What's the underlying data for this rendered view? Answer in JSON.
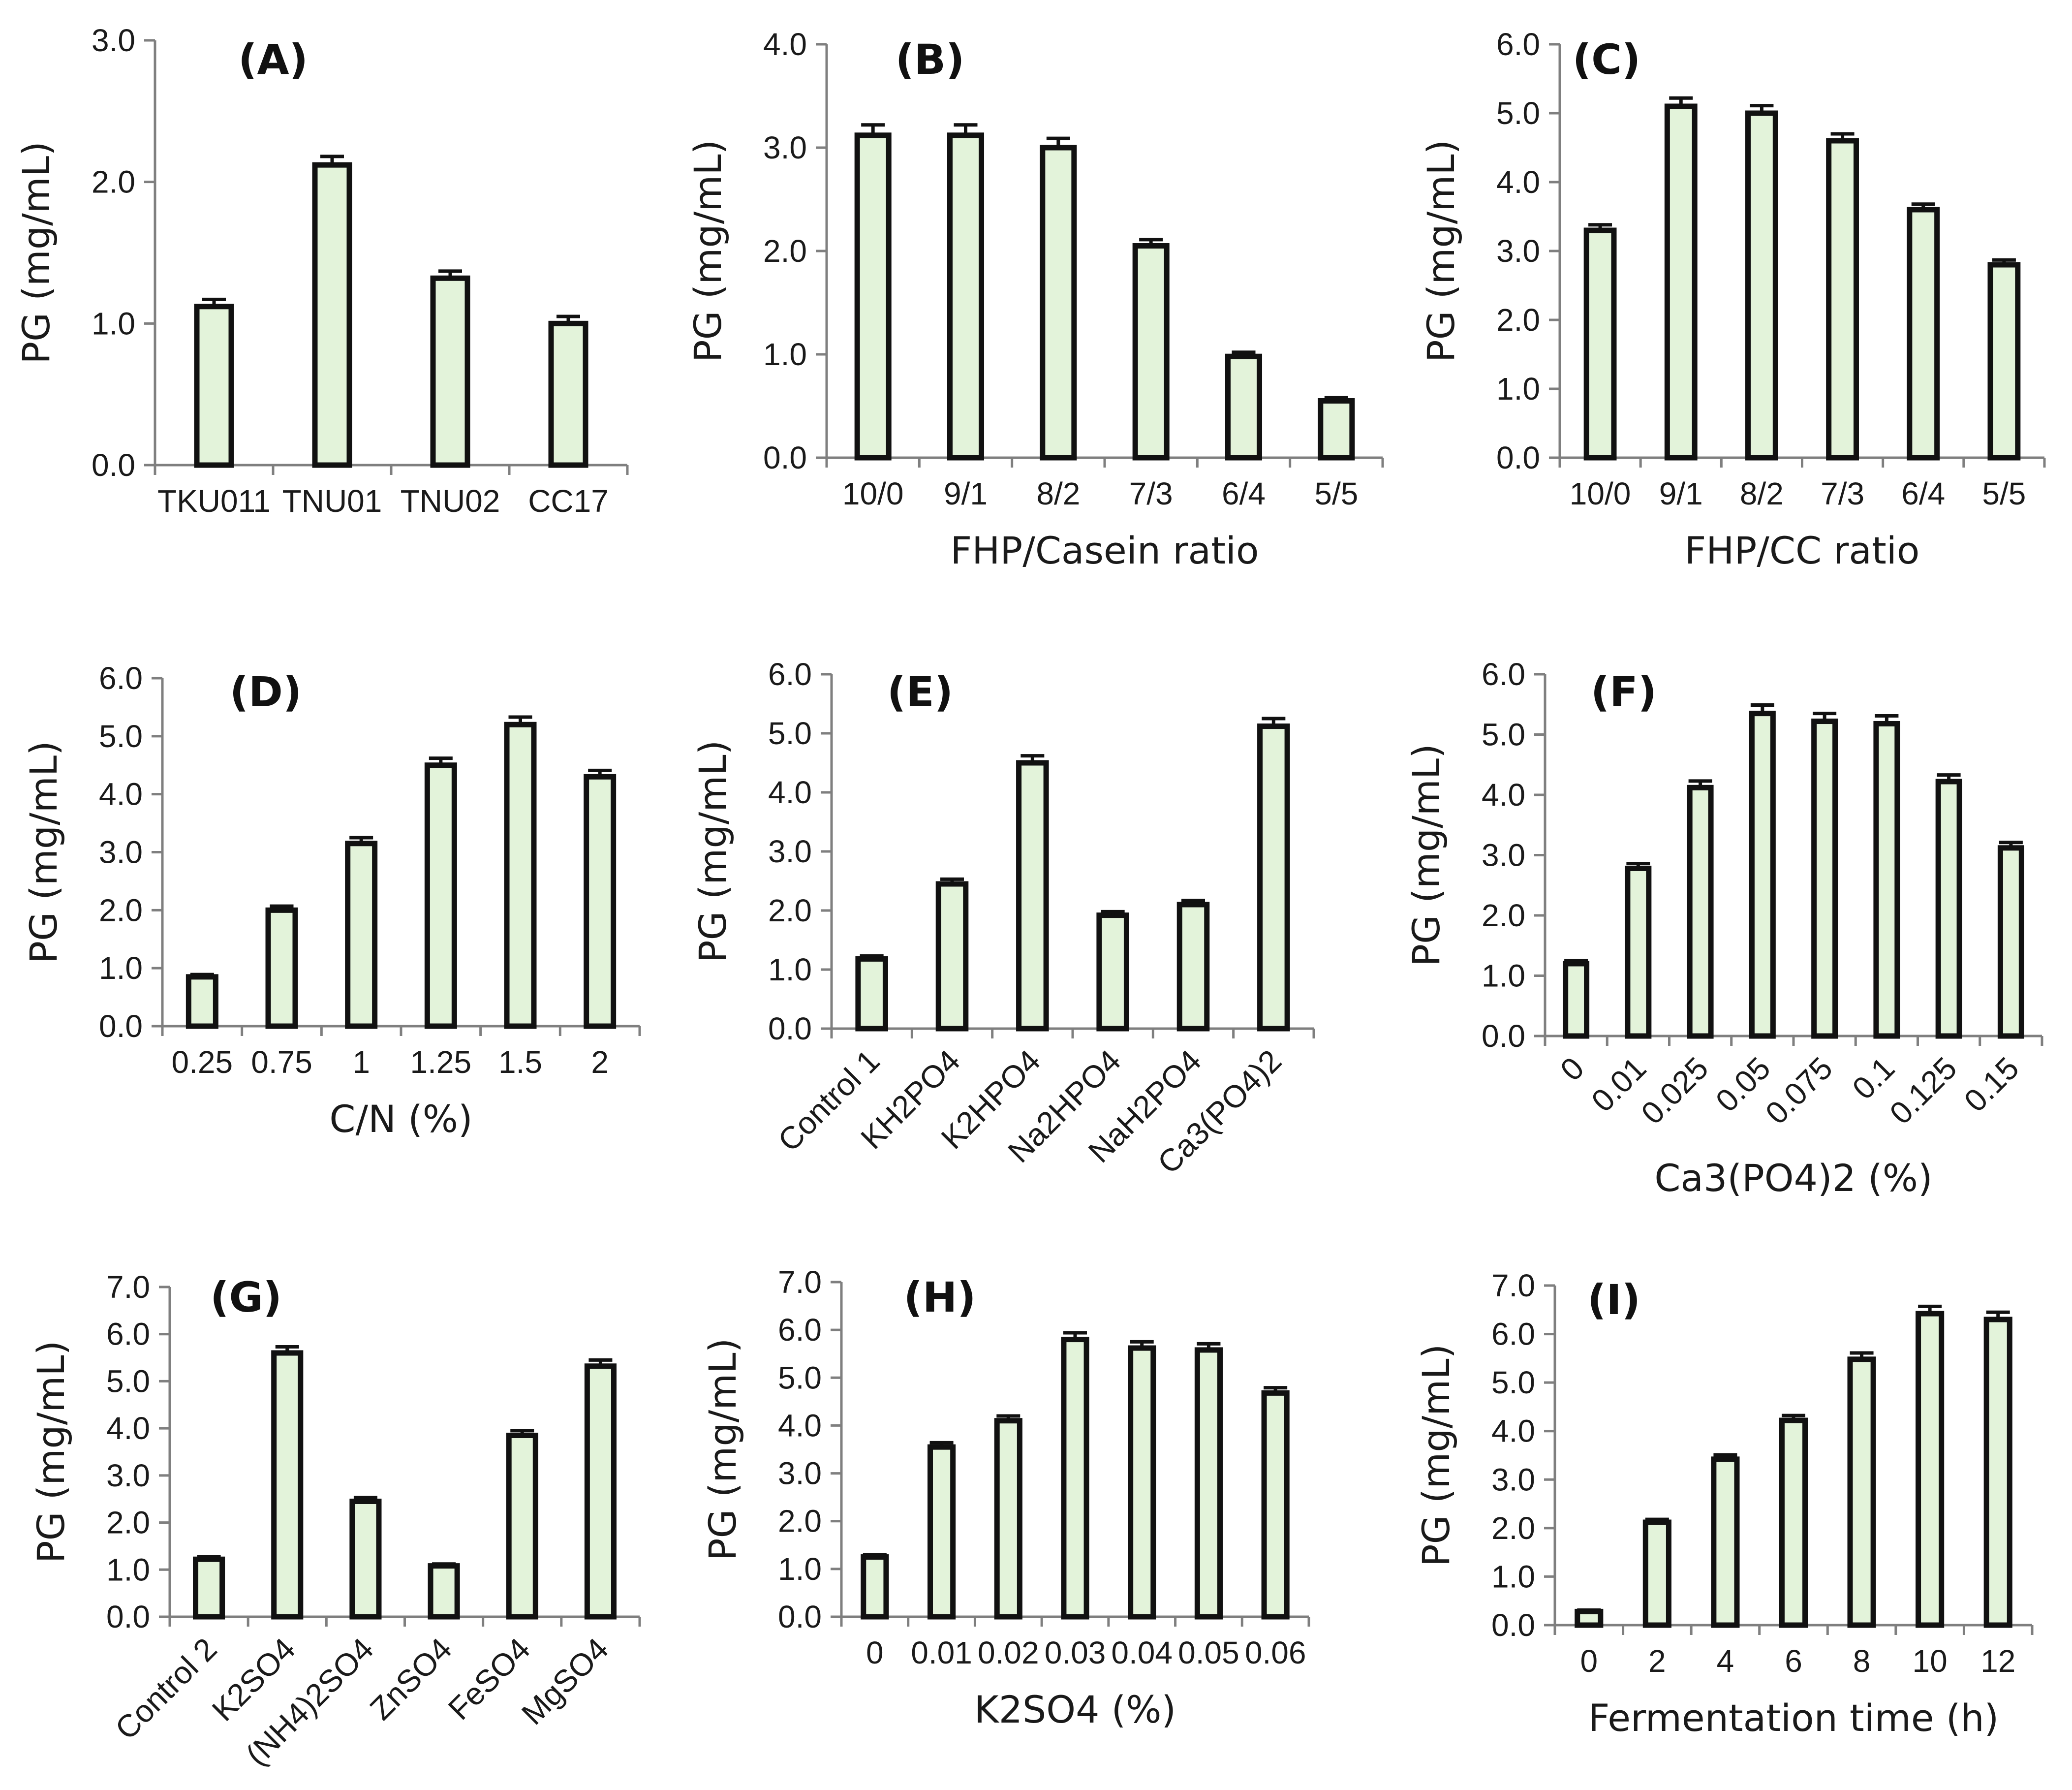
{
  "figure": {
    "bar_fill": "#e3f3da",
    "bar_stroke": "#111111",
    "axis_color": "#7f7f7f"
  },
  "chart_data": [
    {
      "id": "A",
      "type": "bar",
      "title": "(A)",
      "ylabel": "PG (mg/mL)",
      "xlabel": "",
      "categories": [
        "TKU011",
        "TNU01",
        "TNU02",
        "CC17"
      ],
      "values": [
        1.12,
        2.12,
        1.32,
        1.0
      ],
      "errors": [
        0.05,
        0.06,
        0.05,
        0.05
      ],
      "yticks": [
        "0.0",
        "1.0",
        "2.0",
        "3.0"
      ],
      "ylim": [
        0,
        3
      ],
      "grid": false,
      "rotated_labels": false
    },
    {
      "id": "B",
      "type": "bar",
      "title": "(B)",
      "ylabel": "PG (mg/mL)",
      "xlabel": "FHP/Casein ratio",
      "categories": [
        "10/0",
        "9/1",
        "8/2",
        "7/3",
        "6/4",
        "5/5"
      ],
      "values": [
        3.12,
        3.12,
        3.0,
        2.05,
        0.98,
        0.55
      ],
      "errors": [
        0.1,
        0.1,
        0.09,
        0.06,
        0.04,
        0.03
      ],
      "yticks": [
        "0.0",
        "1.0",
        "2.0",
        "3.0",
        "4.0"
      ],
      "ylim": [
        0,
        4
      ],
      "grid": false,
      "rotated_labels": false
    },
    {
      "id": "C",
      "type": "bar",
      "title": "(C)",
      "ylabel": "PG (mg/mL)",
      "xlabel": "FHP/CC ratio",
      "categories": [
        "10/0",
        "9/1",
        "8/2",
        "7/3",
        "6/4",
        "5/5"
      ],
      "values": [
        3.3,
        5.1,
        5.0,
        4.6,
        3.6,
        2.8
      ],
      "errors": [
        0.08,
        0.12,
        0.11,
        0.1,
        0.08,
        0.07
      ],
      "yticks": [
        "0.0",
        "1.0",
        "2.0",
        "3.0",
        "4.0",
        "5.0",
        "6.0"
      ],
      "ylim": [
        0,
        6
      ],
      "grid": false,
      "rotated_labels": false
    },
    {
      "id": "D",
      "type": "bar",
      "title": "(D)",
      "ylabel": "PG (mg/mL)",
      "xlabel": "C/N (%)",
      "categories": [
        "0.25",
        "0.75",
        "1",
        "1.25",
        "1.5",
        "2"
      ],
      "values": [
        0.85,
        2.0,
        3.15,
        4.5,
        5.2,
        4.3
      ],
      "errors": [
        0.04,
        0.07,
        0.1,
        0.12,
        0.13,
        0.11
      ],
      "yticks": [
        "0.0",
        "1.0",
        "2.0",
        "3.0",
        "4.0",
        "5.0",
        "6.0"
      ],
      "ylim": [
        0,
        6
      ],
      "grid": false,
      "rotated_labels": false
    },
    {
      "id": "E",
      "type": "bar",
      "title": "(E)",
      "ylabel": "PG (mg/mL)",
      "xlabel": "",
      "categories": [
        "Control 1",
        "KH2PO4",
        "K2HPO4",
        "Na2HPO4",
        "NaH2PO4",
        "Ca3(PO4)2"
      ],
      "values": [
        1.18,
        2.45,
        4.5,
        1.92,
        2.1,
        5.12
      ],
      "errors": [
        0.05,
        0.08,
        0.12,
        0.06,
        0.07,
        0.13
      ],
      "yticks": [
        "0.0",
        "1.0",
        "2.0",
        "3.0",
        "4.0",
        "5.0",
        "6.0"
      ],
      "ylim": [
        0,
        6
      ],
      "grid": false,
      "rotated_labels": true
    },
    {
      "id": "F",
      "type": "bar",
      "title": "(F)",
      "ylabel": "PG (mg/mL)",
      "xlabel": "Ca3(PO4)2 (%)",
      "categories": [
        "0",
        "0.01",
        "0.025",
        "0.05",
        "0.075",
        "0.1",
        "0.125",
        "0.15"
      ],
      "values": [
        1.2,
        2.78,
        4.12,
        5.35,
        5.22,
        5.18,
        4.22,
        3.12
      ],
      "errors": [
        0.05,
        0.08,
        0.11,
        0.14,
        0.13,
        0.13,
        0.11,
        0.09
      ],
      "yticks": [
        "0.0",
        "1.0",
        "2.0",
        "3.0",
        "4.0",
        "5.0",
        "6.0"
      ],
      "ylim": [
        0,
        6
      ],
      "grid": false,
      "rotated_labels": true
    },
    {
      "id": "G",
      "type": "bar",
      "title": "(G)",
      "ylabel": "PG (mg/mL)",
      "xlabel": "",
      "categories": [
        "Control 2",
        "K2SO4",
        "(NH4)2SO4",
        "ZnSO4",
        "FeSO4",
        "MgSO4"
      ],
      "values": [
        1.22,
        5.6,
        2.45,
        1.08,
        3.85,
        5.32
      ],
      "errors": [
        0.05,
        0.13,
        0.08,
        0.04,
        0.1,
        0.13
      ],
      "yticks": [
        "0.0",
        "1.0",
        "2.0",
        "3.0",
        "4.0",
        "5.0",
        "6.0",
        "7.0"
      ],
      "ylim": [
        0,
        7
      ],
      "grid": false,
      "rotated_labels": true
    },
    {
      "id": "H",
      "type": "bar",
      "title": "(H)",
      "ylabel": "PG (mg/mL)",
      "xlabel": "K2SO4 (%)",
      "categories": [
        "0",
        "0.01",
        "0.02",
        "0.03",
        "0.04",
        "0.05",
        "0.06"
      ],
      "values": [
        1.25,
        3.55,
        4.1,
        5.8,
        5.62,
        5.58,
        4.68
      ],
      "errors": [
        0.05,
        0.09,
        0.1,
        0.14,
        0.13,
        0.13,
        0.11
      ],
      "yticks": [
        "0.0",
        "1.0",
        "2.0",
        "3.0",
        "4.0",
        "5.0",
        "6.0",
        "7.0"
      ],
      "ylim": [
        0,
        7
      ],
      "grid": false,
      "rotated_labels": false
    },
    {
      "id": "I",
      "type": "bar",
      "title": "(I)",
      "ylabel": "PG (mg/mL)",
      "xlabel": "Fermentation time (h)",
      "categories": [
        "0",
        "2",
        "4",
        "6",
        "8",
        "10",
        "12"
      ],
      "values": [
        0.28,
        2.12,
        3.42,
        4.22,
        5.48,
        6.42,
        6.3
      ],
      "errors": [
        0.03,
        0.06,
        0.09,
        0.1,
        0.13,
        0.15,
        0.15
      ],
      "yticks": [
        "0.0",
        "1.0",
        "2.0",
        "3.0",
        "4.0",
        "5.0",
        "6.0",
        "7.0"
      ],
      "ylim": [
        0,
        7
      ],
      "grid": false,
      "rotated_labels": false
    }
  ]
}
